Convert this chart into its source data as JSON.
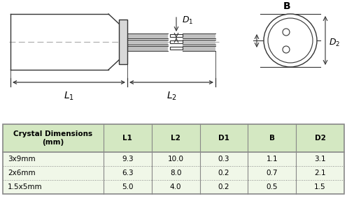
{
  "bg_color": "#ffffff",
  "table_header_bg": "#d4e8c2",
  "table_row_bg": "#f0f7e8",
  "table_border_color": "#888888",
  "table_header": [
    "Crystal Dimensions\n(mm)",
    "L1",
    "L2",
    "D1",
    "B",
    "D2"
  ],
  "table_rows": [
    [
      "3x9mm",
      "9.3",
      "10.0",
      "0.3",
      "1.1",
      "3.1"
    ],
    [
      "2x6mm",
      "6.3",
      "8.0",
      "0.2",
      "0.7",
      "2.1"
    ],
    [
      "1.5x5mm",
      "5.0",
      "4.0",
      "0.2",
      "0.5",
      "1.5"
    ]
  ],
  "line_color": "#333333",
  "dashed_color": "#aaaaaa",
  "gray_fill": "#d8d8d8",
  "lead_fill": "#c0c0c0"
}
